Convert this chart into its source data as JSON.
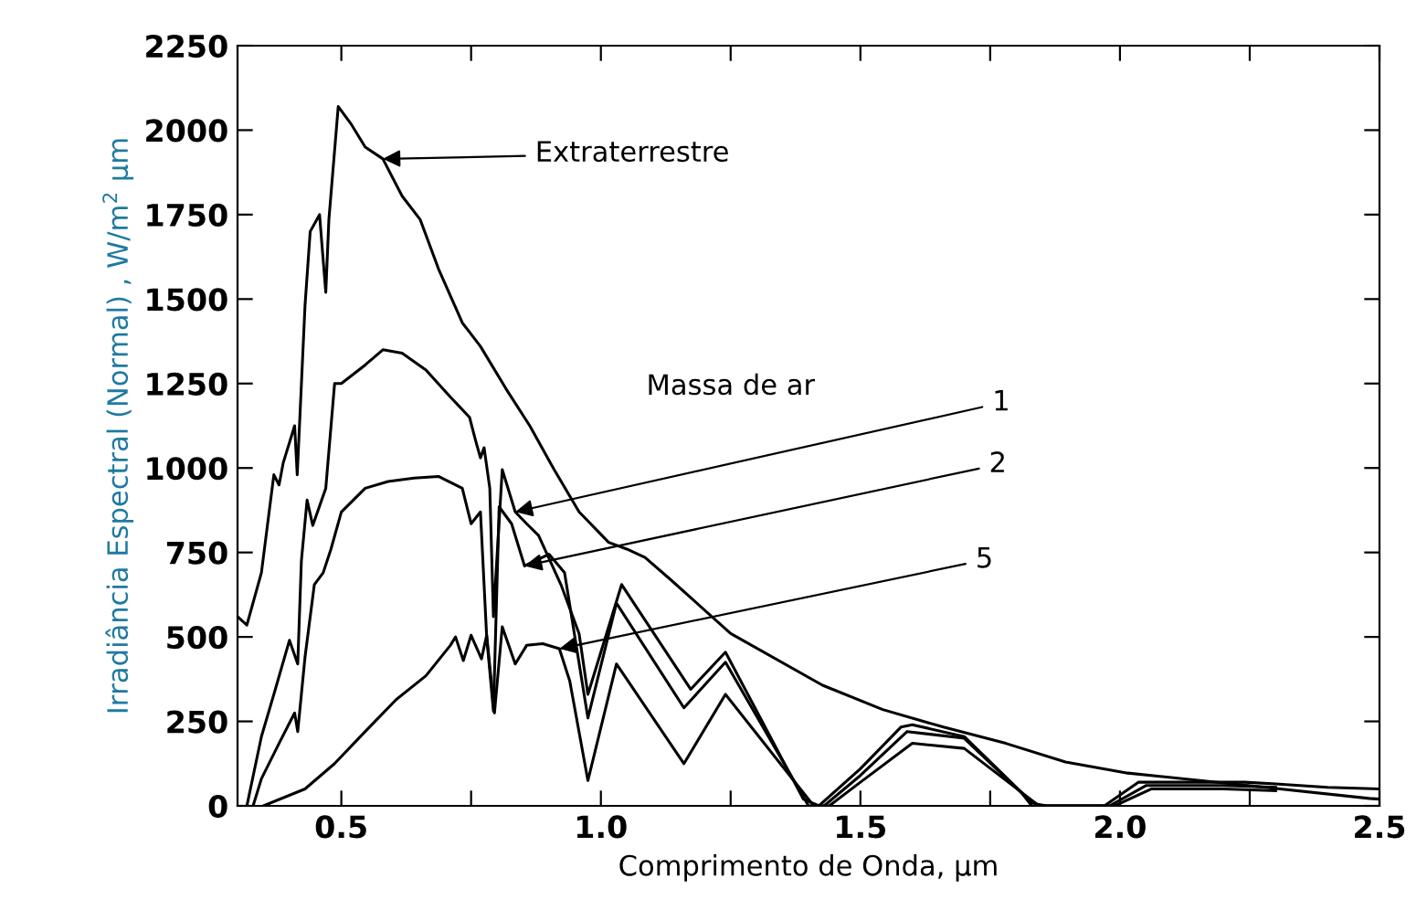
{
  "chart_data": {
    "type": "line",
    "xlabel": "Comprimento de Onda, µm",
    "ylabel": "Irradiância Espectral (Normal) , W/m$^{2}$ µm",
    "xlim": [
      0.3,
      2.5
    ],
    "ylim": [
      0,
      2250
    ],
    "xticks": [
      {
        "value": 0.5,
        "label": "0.5"
      },
      {
        "value": 0.75,
        "label": null
      },
      {
        "value": 1.0,
        "label": "1.0"
      },
      {
        "value": 1.25,
        "label": null
      },
      {
        "value": 1.5,
        "label": "1.5"
      },
      {
        "value": 1.75,
        "label": null
      },
      {
        "value": 2.0,
        "label": "2.0"
      },
      {
        "value": 2.25,
        "label": null
      },
      {
        "value": 2.5,
        "label": "2.5"
      }
    ],
    "yticks": [
      0,
      250,
      500,
      750,
      1000,
      1250,
      1500,
      1750,
      2000,
      2250
    ],
    "grid": false,
    "marker": "none",
    "line_style": "solid",
    "series": [
      {
        "color": "#000000",
        "x": [
          0.3,
          0.318,
          0.346,
          0.37,
          0.38,
          0.388,
          0.41,
          0.415,
          0.43,
          0.44,
          0.458,
          0.47,
          0.476,
          0.494,
          0.518,
          0.546,
          0.58,
          0.617,
          0.652,
          0.687,
          0.733,
          0.768,
          0.817,
          0.863,
          0.91,
          0.958,
          1.015,
          1.05,
          1.085,
          1.134,
          1.25,
          1.427,
          1.543,
          1.66,
          1.78,
          1.895,
          2.015,
          2.247,
          2.48,
          2.5
        ],
        "values": [
          560,
          535,
          690,
          980,
          950,
          1015,
          1125,
          980,
          1480,
          1700,
          1750,
          1520,
          1735,
          2070,
          2020,
          1950,
          1915,
          1805,
          1735,
          1590,
          1430,
          1360,
          1235,
          1125,
          995,
          870,
          780,
          760,
          735,
          670,
          510,
          357,
          285,
          233,
          185,
          130,
          97,
          60,
          22,
          20
        ]
      },
      {
        "color": "#000000",
        "x": [
          0.318,
          0.346,
          0.37,
          0.4,
          0.416,
          0.423,
          0.434,
          0.445,
          0.47,
          0.487,
          0.5,
          0.546,
          0.58,
          0.617,
          0.663,
          0.71,
          0.747,
          0.758,
          0.768,
          0.775,
          0.786,
          0.793,
          0.81,
          0.835,
          0.857,
          0.88,
          0.923,
          0.958,
          0.975,
          1.04,
          1.173,
          1.24,
          1.39,
          1.42,
          1.5,
          1.578,
          1.6,
          1.7,
          1.81,
          1.83,
          1.97,
          2.036,
          2.24,
          2.3,
          2.4,
          2.5
        ],
        "values": [
          0,
          205,
          330,
          490,
          420,
          725,
          905,
          830,
          940,
          1250,
          1250,
          1305,
          1350,
          1340,
          1290,
          1210,
          1150,
          1085,
          1030,
          1060,
          940,
          560,
          995,
          870,
          835,
          800,
          655,
          510,
          330,
          655,
          345,
          455,
          20,
          0,
          110,
          233,
          240,
          205,
          40,
          0,
          0,
          70,
          70,
          65,
          55,
          50
        ]
      },
      {
        "color": "#000000",
        "x": [
          0.33,
          0.346,
          0.38,
          0.41,
          0.416,
          0.43,
          0.448,
          0.465,
          0.48,
          0.5,
          0.546,
          0.59,
          0.64,
          0.687,
          0.733,
          0.75,
          0.768,
          0.78,
          0.793,
          0.804,
          0.828,
          0.853,
          0.9,
          0.93,
          0.975,
          1.03,
          1.16,
          1.24,
          1.4,
          1.43,
          1.5,
          1.59,
          1.7,
          1.83,
          1.85,
          1.98,
          2.05,
          2.2,
          2.3
        ],
        "values": [
          0,
          80,
          185,
          275,
          220,
          440,
          655,
          690,
          760,
          870,
          940,
          960,
          970,
          975,
          940,
          835,
          870,
          500,
          280,
          885,
          835,
          710,
          745,
          690,
          260,
          600,
          290,
          425,
          0,
          0,
          90,
          220,
          200,
          10,
          0,
          0,
          60,
          60,
          55
        ]
      },
      {
        "color": "#000000",
        "x": [
          0.35,
          0.43,
          0.487,
          0.546,
          0.606,
          0.663,
          0.71,
          0.72,
          0.735,
          0.75,
          0.77,
          0.78,
          0.795,
          0.81,
          0.835,
          0.857,
          0.888,
          0.92,
          0.94,
          0.975,
          1.03,
          1.16,
          1.24,
          1.41,
          1.44,
          1.5,
          1.6,
          1.7,
          1.84,
          1.86,
          1.99,
          2.06,
          2.2,
          2.3
        ],
        "values": [
          0,
          50,
          125,
          220,
          315,
          385,
          475,
          500,
          430,
          505,
          435,
          505,
          275,
          530,
          420,
          475,
          480,
          465,
          370,
          75,
          420,
          125,
          330,
          0,
          0,
          70,
          185,
          170,
          5,
          0,
          0,
          50,
          50,
          45
        ]
      }
    ],
    "annotations": [
      {
        "text": "Extraterrestre",
        "x": 0.58,
        "y": 1915
      },
      "Massa de ar",
      {
        "text": "1",
        "x": 0.835,
        "y": 870
      },
      {
        "text": "2",
        "x": 0.853,
        "y": 710
      },
      {
        "text": "5",
        "x": 0.92,
        "y": 465
      }
    ]
  }
}
